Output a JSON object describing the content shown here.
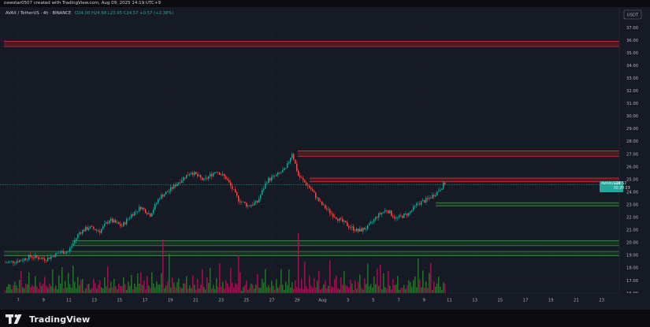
{
  "header": {
    "caption": "newstar0507 created with TradingView.com, Aug 09, 2025 14:19 UTC+9"
  },
  "footer": {
    "brand": "TradingView",
    "logo_icon": "tradingview-logo-icon"
  },
  "chart_data": {
    "type": "candlestick",
    "legend": {
      "symbol_text": "AVAX / TetherUS · 4h · BINANCE",
      "ohlc_text": "O24.00  H24.68  L23.95  C24.57  +0.57 (+2.38%)",
      "symbol_color": "#d1d4dc",
      "value_color": "#26a69a"
    },
    "price_axis": {
      "currency": "USDT",
      "min": 16.0,
      "max": 37.0,
      "ticks": [
        "37.00",
        "36.00",
        "35.00",
        "34.00",
        "33.00",
        "32.00",
        "31.00",
        "30.00",
        "29.00",
        "28.00",
        "27.00",
        "26.00",
        "25.00",
        "24.00",
        "23.00",
        "22.00",
        "21.00",
        "20.00",
        "19.00",
        "18.00",
        "17.00",
        "16.00"
      ]
    },
    "time_axis": {
      "labels": [
        "7",
        "9",
        "11",
        "13",
        "15",
        "17",
        "19",
        "21",
        "23",
        "25",
        "27",
        "29",
        "Aug",
        "3",
        "5",
        "7",
        "9",
        "11",
        "13",
        "15",
        "17",
        "19",
        "21",
        "23"
      ]
    },
    "last_price": {
      "label": "AVAXUSDT",
      "value": "24.57",
      "countdown": "02:20:23",
      "color": "#26a69a"
    },
    "zones": [
      {
        "type": "resistance",
        "low": 35.5,
        "high": 35.9,
        "color": "#b71c1c"
      },
      {
        "type": "resistance",
        "low": 26.8,
        "high": 27.25,
        "color": "#b71c1c"
      },
      {
        "type": "resistance",
        "low": 24.8,
        "high": 25.1,
        "color": "#b71c1c"
      },
      {
        "type": "support",
        "low": 22.9,
        "high": 23.15,
        "color": "#1b5e20"
      },
      {
        "type": "support",
        "low": 19.75,
        "high": 20.15,
        "color": "#1b5e20"
      },
      {
        "type": "support",
        "low": 18.95,
        "high": 19.3,
        "color": "#1b5e20"
      }
    ],
    "colors": {
      "up": "#26a69a",
      "down": "#ef5350",
      "volume_up": "#2e7d32",
      "volume_down": "#ad1457",
      "background": "#161a25"
    },
    "path": [
      [
        0,
        18.4
      ],
      [
        10,
        18.6
      ],
      [
        16,
        18.9
      ],
      [
        26,
        18.7
      ],
      [
        34,
        19.2
      ],
      [
        40,
        19.3
      ],
      [
        47,
        20.8
      ],
      [
        53,
        21.2
      ],
      [
        60,
        20.9
      ],
      [
        66,
        21.8
      ],
      [
        74,
        21.3
      ],
      [
        80,
        22.2
      ],
      [
        86,
        22.8
      ],
      [
        92,
        22.2
      ],
      [
        98,
        23.6
      ],
      [
        104,
        24.1
      ],
      [
        110,
        24.8
      ],
      [
        118,
        25.6
      ],
      [
        126,
        24.9
      ],
      [
        134,
        25.7
      ],
      [
        140,
        25.1
      ],
      [
        148,
        23.4
      ],
      [
        154,
        22.9
      ],
      [
        160,
        23.2
      ],
      [
        166,
        24.9
      ],
      [
        172,
        25.3
      ],
      [
        178,
        25.8
      ],
      [
        182,
        27.1
      ],
      [
        186,
        25.3
      ],
      [
        194,
        24.2
      ],
      [
        200,
        23.1
      ],
      [
        206,
        22.4
      ],
      [
        212,
        21.8
      ],
      [
        218,
        21.3
      ],
      [
        224,
        20.9
      ],
      [
        230,
        21.2
      ],
      [
        236,
        22.1
      ],
      [
        242,
        22.6
      ],
      [
        248,
        21.9
      ],
      [
        256,
        22.3
      ],
      [
        262,
        23.1
      ],
      [
        268,
        23.4
      ],
      [
        274,
        24.0
      ],
      [
        278,
        24.57
      ]
    ],
    "volume": {
      "pattern": [
        0.05,
        0.08,
        0.12,
        0.16,
        0.06,
        0.1,
        0.22,
        0.14,
        0.09,
        0.18,
        0.28,
        0.11,
        0.07,
        0.2,
        0.13,
        0.33,
        0.1,
        0.16,
        0.08,
        0.25,
        0.12,
        0.06,
        0.19,
        0.09,
        0.15,
        0.3,
        0.11,
        0.07,
        0.21,
        0.14,
        0.38,
        0.09,
        0.17,
        0.08,
        0.24,
        0.12,
        0.45,
        0.1,
        0.18,
        0.07,
        0.26,
        0.13,
        0.09,
        0.35,
        0.15,
        0.08,
        0.22,
        0.11,
        0.16,
        0.28
      ],
      "spikes": [
        [
          100,
          0.85
        ],
        [
          104,
          0.62
        ],
        [
          148,
          0.6
        ],
        [
          186,
          0.95
        ],
        [
          190,
          0.5
        ],
        [
          206,
          0.52
        ],
        [
          238,
          0.45
        ],
        [
          262,
          0.55
        ],
        [
          270,
          0.48
        ]
      ]
    }
  }
}
